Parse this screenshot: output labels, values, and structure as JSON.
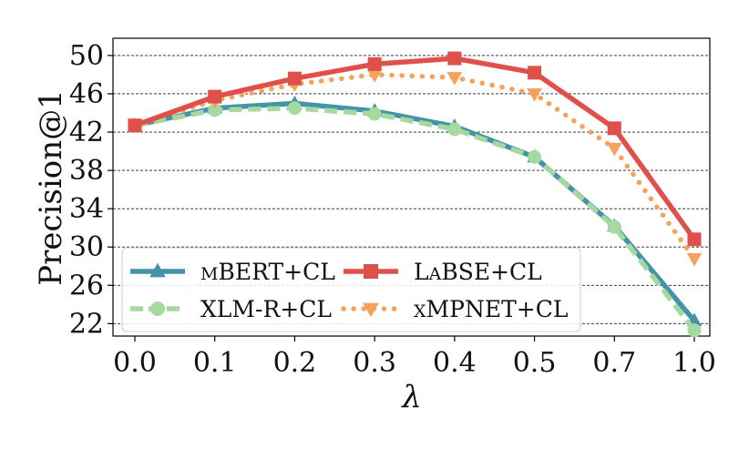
{
  "chart_data": {
    "type": "line",
    "title": "",
    "xlabel": "λ",
    "ylabel": "Precision@1",
    "categories": [
      "0.0",
      "0.1",
      "0.2",
      "0.3",
      "0.4",
      "0.5",
      "0.7",
      "1.0"
    ],
    "ylim": [
      20.7,
      51.8
    ],
    "yticks": [
      22,
      26,
      30,
      34,
      38,
      42,
      46,
      50
    ],
    "grid": "horizontal dashed",
    "legend_position": "lower-left",
    "series": [
      {
        "name": "mBERT+CL",
        "label_parts": [
          {
            "t": "M",
            "sc": true
          },
          {
            "t": "BERT+CL",
            "sc": false
          }
        ],
        "color": "#4393a9",
        "style": "solid",
        "marker": "triangle-up",
        "values": [
          42.7,
          44.5,
          45.0,
          44.2,
          42.6,
          39.4,
          32.2,
          22.3
        ]
      },
      {
        "name": "LaBSE+CL",
        "label_parts": [
          {
            "t": "L",
            "sc": false
          },
          {
            "t": "A",
            "sc": true
          },
          {
            "t": "BSE+CL",
            "sc": false
          }
        ],
        "color": "#e0504a",
        "style": "solid",
        "marker": "square",
        "values": [
          42.7,
          45.7,
          47.6,
          49.1,
          49.7,
          48.2,
          42.4,
          30.8
        ]
      },
      {
        "name": "XLM-R+CL",
        "label_parts": [
          {
            "t": "XLM-R+CL",
            "sc": false
          }
        ],
        "color": "#a6d9a0",
        "style": "dashed",
        "marker": "circle",
        "values": [
          42.7,
          44.3,
          44.5,
          43.9,
          42.3,
          39.4,
          32.1,
          21.3
        ]
      },
      {
        "name": "xMPNET+CL",
        "label_parts": [
          {
            "t": "X",
            "sc": true
          },
          {
            "t": "MPNET+CL",
            "sc": false
          }
        ],
        "color": "#f6a25c",
        "style": "dotted",
        "marker": "triangle-down",
        "values": [
          42.7,
          45.3,
          47.0,
          48.0,
          47.7,
          46.0,
          40.3,
          28.8
        ]
      }
    ]
  }
}
